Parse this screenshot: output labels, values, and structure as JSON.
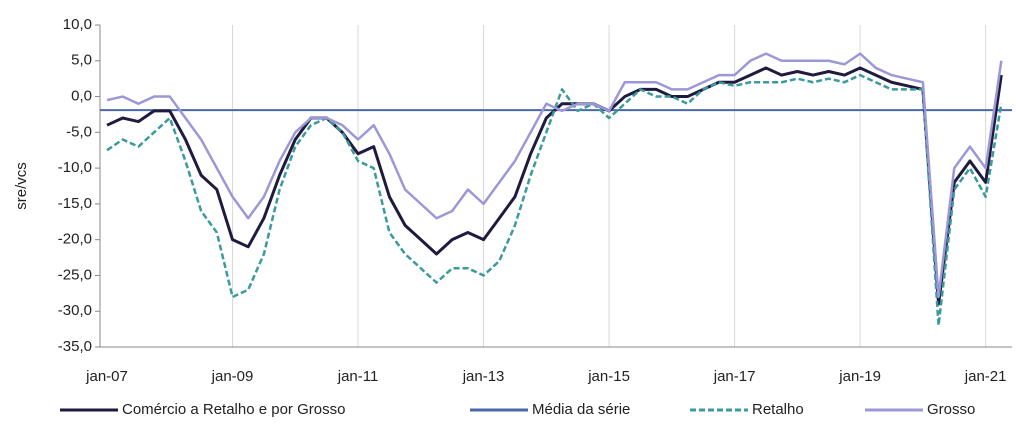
{
  "chart_data": {
    "type": "line",
    "y_label": "sre/vcs",
    "categories": [
      "jan-07",
      null,
      null,
      null,
      null,
      null,
      null,
      null,
      "jan-09",
      null,
      null,
      null,
      null,
      null,
      null,
      null,
      "jan-11",
      null,
      null,
      null,
      null,
      null,
      null,
      null,
      "jan-13",
      null,
      null,
      null,
      null,
      null,
      null,
      null,
      "jan-15",
      null,
      null,
      null,
      null,
      null,
      null,
      null,
      "jan-17",
      null,
      null,
      null,
      null,
      null,
      null,
      null,
      "jan-19",
      null,
      null,
      null,
      null,
      null,
      null,
      null,
      "jan-21",
      null
    ],
    "series": [
      {
        "name": "Comércio a Retalho e por Grosso",
        "color": "#1e1b3f",
        "style": "solid",
        "values": [
          -4,
          -3,
          -3.5,
          -2,
          -2,
          -6,
          -11,
          -13,
          -20,
          -21,
          -17,
          -11,
          -6,
          -3,
          -3,
          -5,
          -8,
          -7,
          -14,
          -18,
          -20,
          -22,
          -20,
          -19,
          -20,
          -17,
          -14,
          -8,
          -3,
          -1,
          -1,
          -1,
          -2,
          0,
          1,
          1,
          0,
          0,
          1,
          2,
          2,
          3,
          4,
          3,
          3.5,
          3,
          3.5,
          3,
          4,
          3,
          2,
          1.5,
          1,
          -29,
          -12,
          -9,
          -12,
          3
        ]
      },
      {
        "name": "Retalho",
        "color": "#3a9a9c",
        "style": "dashed",
        "values": [
          -7.5,
          -6,
          -7,
          -5,
          -3,
          -9,
          -16,
          -19,
          -28,
          -27,
          -22,
          -13,
          -7,
          -4,
          -3,
          -5,
          -9,
          -10,
          -19,
          -22,
          -24,
          -26,
          -24,
          -24,
          -25,
          -23,
          -18,
          -11,
          -5,
          1,
          -2,
          -1,
          -3,
          -1,
          1,
          0,
          0,
          -1,
          1,
          2,
          1.5,
          2,
          2,
          2,
          2.5,
          2,
          2.5,
          2,
          3,
          2,
          1,
          1,
          1,
          -32,
          -13,
          -10,
          -14,
          -1
        ]
      },
      {
        "name": "Grosso",
        "color": "#9c98d8",
        "style": "solid",
        "values": [
          -0.5,
          0,
          -1,
          0,
          0,
          -3,
          -6,
          -10,
          -14,
          -17,
          -14,
          -9,
          -5,
          -3,
          -3,
          -4,
          -6,
          -4,
          -8,
          -13,
          -15,
          -17,
          -16,
          -13,
          -15,
          -12,
          -9,
          -5,
          -1,
          -2,
          -1,
          -1,
          -2,
          2,
          2,
          2,
          1,
          1,
          2,
          3,
          3,
          5,
          6,
          5,
          5,
          5,
          5,
          4.5,
          6,
          4,
          3,
          2.5,
          2,
          -28,
          -10,
          -7,
          -10,
          5
        ]
      }
    ],
    "mean_line": {
      "name": "Média da série",
      "color": "#4a68a8",
      "value": -1.9
    },
    "ylim": [
      -35,
      10
    ],
    "yticks": [
      {
        "value": -35,
        "label": "-35,0"
      },
      {
        "value": -30,
        "label": "-30,0"
      },
      {
        "value": -25,
        "label": "-25,0"
      },
      {
        "value": -20,
        "label": "-20,0"
      },
      {
        "value": -15,
        "label": "-15,0"
      },
      {
        "value": -10,
        "label": "-10,0"
      },
      {
        "value": -5,
        "label": "-5,0"
      },
      {
        "value": 0,
        "label": "0,0"
      },
      {
        "value": 5,
        "label": "5,0"
      },
      {
        "value": 10,
        "label": "10,0"
      }
    ],
    "grid": "x"
  }
}
